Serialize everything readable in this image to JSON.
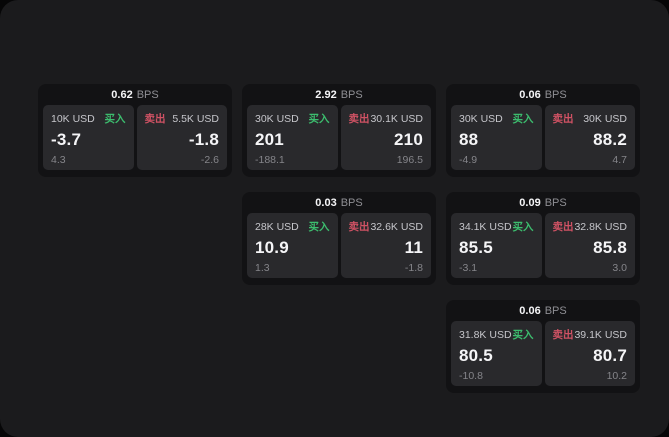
{
  "labels": {
    "bps_unit": "BPS",
    "buy": "买入",
    "sell": "卖出"
  },
  "colors": {
    "page_bg": "#1b1b1d",
    "outer_bg": "#060607",
    "card_bg": "#121214",
    "panel_bg": "#29292c",
    "buy_green": "#3cbd6e",
    "sell_red": "#d05264",
    "value_white": "#f5f5f7",
    "muted_gray": "#85858a",
    "label_gray": "#c6c6cb",
    "unit_gray": "#8f8f94"
  },
  "cards": [
    {
      "bps_value": "0.62",
      "buy": {
        "amount": "10K USD",
        "value": "-3.7",
        "sub": "4.3"
      },
      "sell": {
        "amount": "5.5K USD",
        "value": "-1.8",
        "sub": "-2.6"
      }
    },
    {
      "bps_value": "2.92",
      "buy": {
        "amount": "30K USD",
        "value": "201",
        "sub": "-188.1"
      },
      "sell": {
        "amount": "30.1K USD",
        "value": "210",
        "sub": "196.5"
      }
    },
    {
      "bps_value": "0.06",
      "buy": {
        "amount": "30K USD",
        "value": "88",
        "sub": "-4.9"
      },
      "sell": {
        "amount": "30K USD",
        "value": "88.2",
        "sub": "4.7"
      }
    },
    {
      "bps_value": "0.03",
      "buy": {
        "amount": "28K USD",
        "value": "10.9",
        "sub": "1.3"
      },
      "sell": {
        "amount": "32.6K USD",
        "value": "11",
        "sub": "-1.8"
      }
    },
    {
      "bps_value": "0.09",
      "buy": {
        "amount": "34.1K USD",
        "value": "85.5",
        "sub": "-3.1"
      },
      "sell": {
        "amount": "32.8K USD",
        "value": "85.8",
        "sub": "3.0"
      }
    },
    {
      "bps_value": "0.06",
      "buy": {
        "amount": "31.8K USD",
        "value": "80.5",
        "sub": "-10.8"
      },
      "sell": {
        "amount": "39.1K USD",
        "value": "80.7",
        "sub": "10.2"
      }
    }
  ]
}
